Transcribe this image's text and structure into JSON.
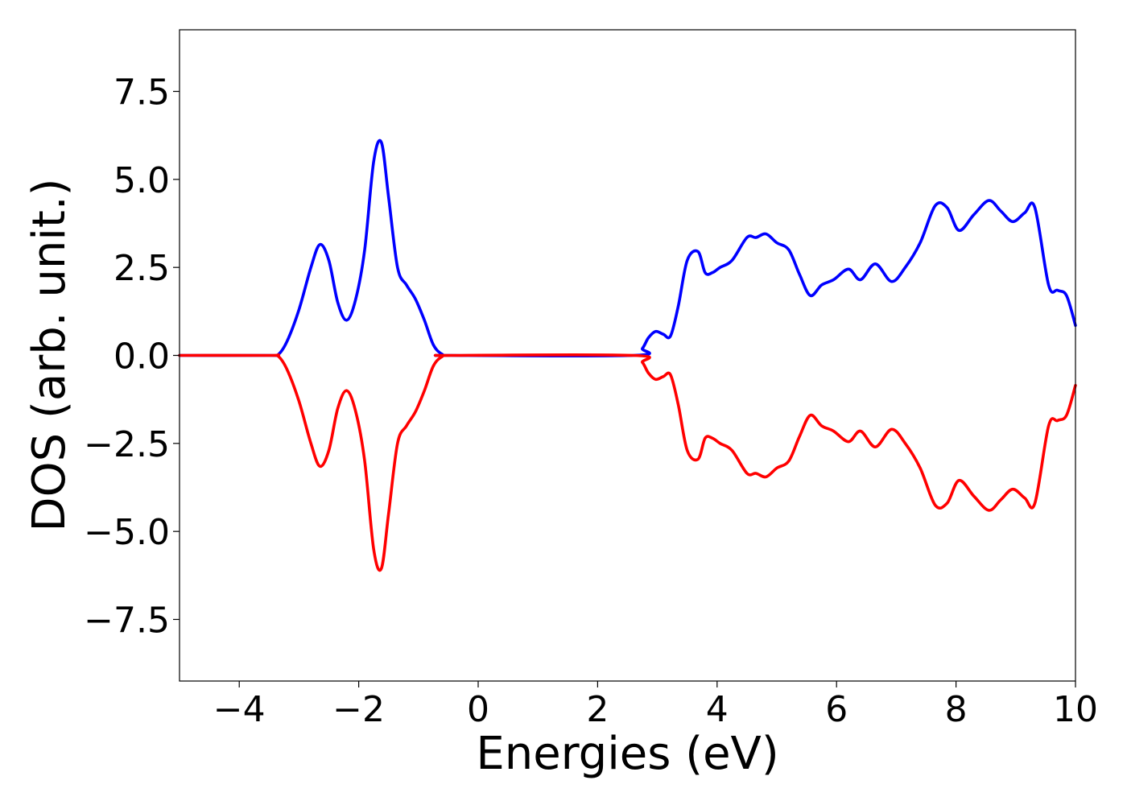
{
  "chart_data": {
    "type": "line",
    "title": "",
    "xlabel": "Energies (eV)",
    "ylabel": "DOS (arb. unit.)",
    "xlim": [
      -5,
      10
    ],
    "ylim": [
      -9.25,
      9.25
    ],
    "xticks": [
      -4,
      -2,
      0,
      2,
      4,
      6,
      8,
      10
    ],
    "xtick_labels": [
      "−4",
      "−2",
      "0",
      "2",
      "4",
      "6",
      "8",
      "10"
    ],
    "yticks": [
      7.5,
      5.0,
      2.5,
      0.0,
      -2.5,
      -5.0,
      -7.5
    ],
    "ytick_labels": [
      "7.5",
      "5.0",
      "2.5",
      "0.0",
      "−2.5",
      "−5.0",
      "−7.5"
    ],
    "grid": false,
    "legend": "none",
    "series": [
      {
        "color": "#0000ff",
        "x": [
          -5.0,
          -3.5,
          -3.35,
          -3.2,
          -3.0,
          -2.8,
          -2.65,
          -2.5,
          -2.35,
          -2.2,
          -2.05,
          -1.9,
          -1.75,
          -1.62,
          -1.5,
          -1.35,
          -1.2,
          -1.05,
          -0.9,
          -0.75,
          -0.6,
          -0.45,
          2.6,
          2.75,
          2.85,
          2.97,
          3.1,
          3.22,
          3.35,
          3.5,
          3.68,
          3.8,
          3.92,
          4.05,
          4.25,
          4.5,
          4.65,
          4.82,
          5.0,
          5.2,
          5.38,
          5.56,
          5.75,
          5.95,
          6.2,
          6.4,
          6.65,
          6.92,
          7.15,
          7.4,
          7.65,
          7.85,
          8.05,
          8.3,
          8.55,
          8.75,
          8.95,
          9.15,
          9.32,
          9.55,
          9.7,
          9.85,
          10.0
        ],
        "y": [
          0.0,
          0.0,
          0.02,
          0.4,
          1.3,
          2.5,
          3.15,
          2.7,
          1.5,
          1.0,
          1.6,
          3.0,
          5.5,
          6.05,
          4.5,
          2.5,
          2.0,
          1.6,
          1.0,
          0.3,
          0.03,
          0.0,
          0.0,
          0.2,
          0.5,
          0.68,
          0.6,
          0.55,
          1.4,
          2.7,
          2.95,
          2.35,
          2.35,
          2.5,
          2.7,
          3.35,
          3.35,
          3.45,
          3.2,
          3.0,
          2.3,
          1.7,
          2.0,
          2.15,
          2.45,
          2.15,
          2.6,
          2.1,
          2.5,
          3.2,
          4.25,
          4.2,
          3.55,
          4.0,
          4.4,
          4.1,
          3.8,
          4.05,
          4.2,
          2.0,
          1.85,
          1.7,
          0.85
        ]
      },
      {
        "color": "#ff0000",
        "x": [
          -5.0,
          -3.5,
          -3.35,
          -3.2,
          -3.0,
          -2.8,
          -2.65,
          -2.5,
          -2.35,
          -2.2,
          -2.05,
          -1.9,
          -1.75,
          -1.62,
          -1.5,
          -1.35,
          -1.2,
          -1.05,
          -0.9,
          -0.75,
          -0.6,
          -0.45,
          2.6,
          2.75,
          2.85,
          2.97,
          3.1,
          3.22,
          3.35,
          3.5,
          3.68,
          3.8,
          3.92,
          4.05,
          4.25,
          4.5,
          4.65,
          4.82,
          5.0,
          5.2,
          5.38,
          5.56,
          5.75,
          5.95,
          6.2,
          6.4,
          6.65,
          6.92,
          7.15,
          7.4,
          7.65,
          7.85,
          8.05,
          8.3,
          8.55,
          8.75,
          8.95,
          9.15,
          9.32,
          9.55,
          9.7,
          9.85,
          10.0
        ],
        "y": [
          0.0,
          0.0,
          -0.02,
          -0.4,
          -1.3,
          -2.5,
          -3.15,
          -2.7,
          -1.5,
          -1.0,
          -1.6,
          -3.0,
          -5.5,
          -6.05,
          -4.5,
          -2.5,
          -2.0,
          -1.6,
          -1.0,
          -0.3,
          -0.03,
          0.0,
          0.0,
          -0.2,
          -0.5,
          -0.68,
          -0.6,
          -0.55,
          -1.4,
          -2.7,
          -2.95,
          -2.35,
          -2.35,
          -2.5,
          -2.7,
          -3.35,
          -3.35,
          -3.45,
          -3.2,
          -3.0,
          -2.3,
          -1.7,
          -2.0,
          -2.15,
          -2.45,
          -2.15,
          -2.6,
          -2.1,
          -2.5,
          -3.2,
          -4.25,
          -4.2,
          -3.55,
          -4.0,
          -4.4,
          -4.1,
          -3.8,
          -4.05,
          -4.2,
          -2.0,
          -1.85,
          -1.7,
          -0.85
        ]
      }
    ]
  }
}
